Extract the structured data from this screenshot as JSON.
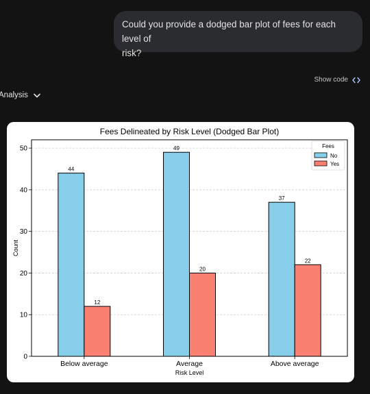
{
  "user_message": {
    "line1": "Could you provide a dodged bar plot of fees for each level of",
    "line2": "risk?"
  },
  "show_code": {
    "label": "Show code",
    "icon": "code-brackets-icon"
  },
  "analysis": {
    "label": "Analysis",
    "icon": "chevron-down-icon"
  },
  "chart_data": {
    "type": "bar",
    "title": "Fees Delineated by Risk Level (Dodged Bar Plot)",
    "xlabel": "Risk Level",
    "ylabel": "Count",
    "categories": [
      "Below average",
      "Average",
      "Above average"
    ],
    "series": [
      {
        "name": "No",
        "values": [
          44,
          49,
          37
        ],
        "color": "#87ceeb"
      },
      {
        "name": "Yes",
        "values": [
          12,
          20,
          22
        ],
        "color": "#fa8072"
      }
    ],
    "ylim": [
      0,
      52
    ],
    "yticks": [
      0,
      10,
      20,
      30,
      40,
      50
    ],
    "grid": true,
    "legend": {
      "title": "Fees",
      "placement": "top-right"
    }
  }
}
